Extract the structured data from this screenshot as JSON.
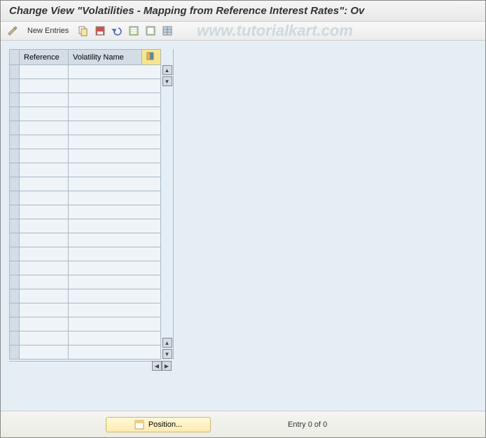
{
  "header": {
    "title": "Change View \"Volatilities - Mapping from Reference Interest Rates\": Ov"
  },
  "toolbar": {
    "new_entries_label": "New Entries",
    "icons": {
      "edit": "edit-icon",
      "copy": "copy-icon",
      "save_variant": "save-variant-icon",
      "undo": "undo-icon",
      "select_all": "select-all-icon",
      "delimit": "delimit-icon",
      "table_settings": "table-settings-icon"
    }
  },
  "watermark": "www.tutorialkart.com",
  "table": {
    "columns": [
      "Reference",
      "Volatility Name"
    ],
    "row_count": 21,
    "column_widths": {
      "selector": 14,
      "reference": 70,
      "volatility": 105
    },
    "colors": {
      "header_bg": "#d4dde6",
      "cell_bg": "#eff4f8",
      "border": "#a8b8c8",
      "area_bg": "#e6eef5"
    }
  },
  "footer": {
    "position_label": "Position...",
    "entry_text": "Entry 0 of 0"
  }
}
